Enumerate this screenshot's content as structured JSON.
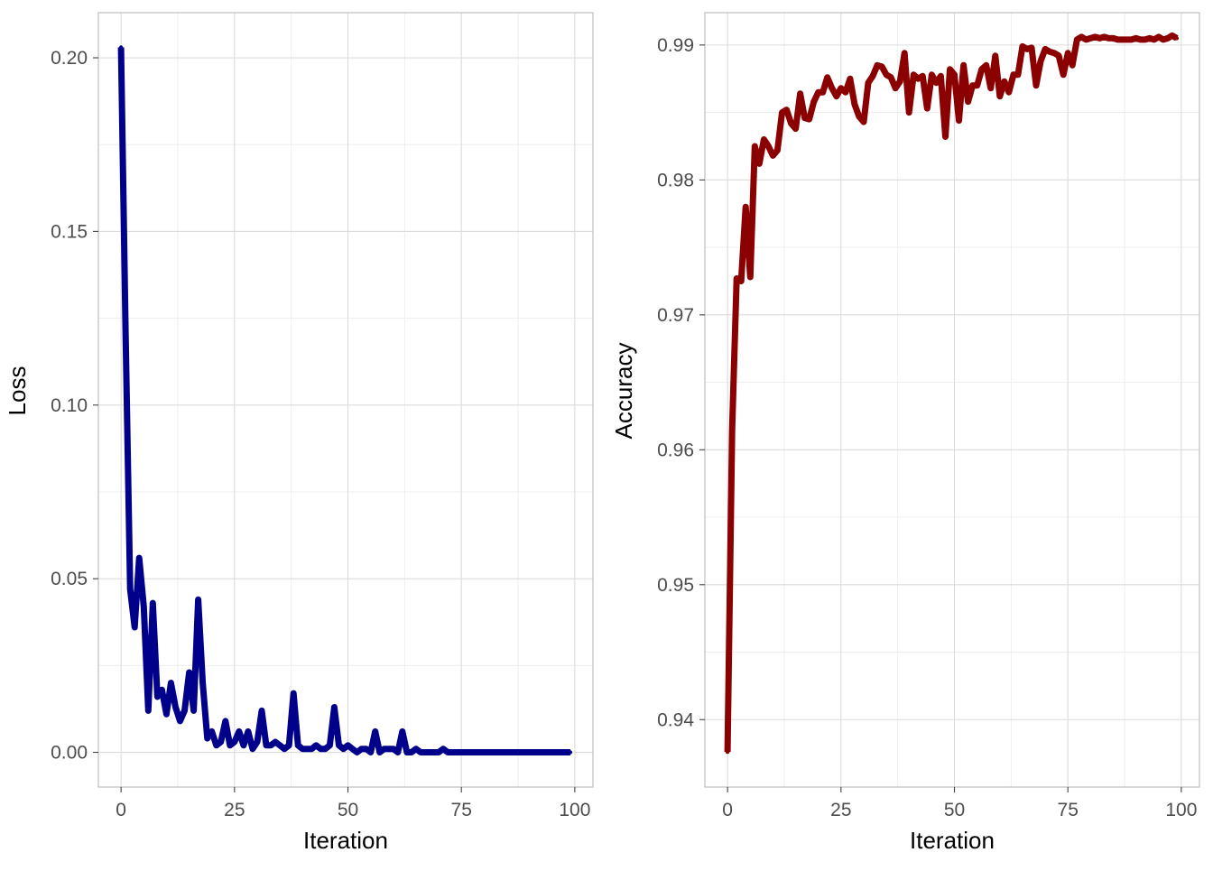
{
  "chart_data": [
    {
      "type": "line",
      "title": "",
      "xlabel": "Iteration",
      "ylabel": "Loss",
      "xlim": [
        -5,
        104
      ],
      "ylim": [
        -0.01,
        0.213
      ],
      "x_ticks": [
        0,
        25,
        50,
        75,
        100
      ],
      "x_tick_labels": [
        "0",
        "25",
        "50",
        "75",
        "100"
      ],
      "y_ticks": [
        0,
        0.05,
        0.1,
        0.15,
        0.2
      ],
      "y_tick_labels": [
        "0.00",
        "0.05",
        "0.10",
        "0.15",
        "0.20"
      ],
      "grid": true,
      "color": "#00008b",
      "series": [
        {
          "x": [
            0,
            1,
            2,
            3,
            4,
            5,
            6,
            7,
            8,
            9,
            10,
            11,
            12,
            13,
            14,
            15,
            16,
            17,
            18,
            19,
            20,
            21,
            22,
            23,
            24,
            25,
            26,
            27,
            28,
            29,
            30,
            31,
            32,
            33,
            34,
            35,
            36,
            37,
            38,
            39,
            40,
            41,
            42,
            43,
            44,
            45,
            46,
            47,
            48,
            49,
            50,
            51,
            52,
            53,
            54,
            55,
            56,
            57,
            58,
            59,
            60,
            61,
            62,
            63,
            64,
            65,
            66,
            67,
            68,
            69,
            70,
            71,
            72,
            73,
            74,
            75,
            76,
            77,
            78,
            79,
            80,
            81,
            82,
            83,
            84,
            85,
            86,
            87,
            88,
            89,
            90,
            91,
            92,
            93,
            94,
            95,
            96,
            97,
            98,
            99
          ],
          "y": [
            0.203,
            0.12,
            0.047,
            0.036,
            0.056,
            0.042,
            0.012,
            0.043,
            0.016,
            0.018,
            0.011,
            0.02,
            0.013,
            0.009,
            0.012,
            0.023,
            0.012,
            0.044,
            0.02,
            0.004,
            0.006,
            0.002,
            0.003,
            0.009,
            0.002,
            0.003,
            0.006,
            0.002,
            0.006,
            0.001,
            0.003,
            0.012,
            0.002,
            0.002,
            0.003,
            0.002,
            0.001,
            0.002,
            0.017,
            0.002,
            0.001,
            0.001,
            0.001,
            0.002,
            0.001,
            0.001,
            0.002,
            0.013,
            0.002,
            0.001,
            0.002,
            0.001,
            0.0,
            0.001,
            0.001,
            0.0,
            0.006,
            0.0,
            0.001,
            0.001,
            0.001,
            0.0,
            0.006,
            0.0,
            0.0,
            0.001,
            0.0,
            0.0,
            0.0,
            0.0,
            0.0,
            0.001,
            0.0,
            0.0,
            0.0,
            0.0,
            0.0,
            0.0,
            0.0,
            0.0,
            0.0,
            0.0,
            0.0,
            0.0,
            0.0,
            0.0,
            0.0,
            0.0,
            0.0,
            0.0,
            0.0,
            0.0,
            0.0,
            0.0,
            0.0,
            0.0,
            0.0,
            0.0,
            0.0,
            0.0
          ]
        }
      ]
    },
    {
      "type": "line",
      "title": "",
      "xlabel": "Iteration",
      "ylabel": "Accuracy",
      "xlim": [
        -5,
        104
      ],
      "ylim": [
        0.935,
        0.9924
      ],
      "x_ticks": [
        0,
        25,
        50,
        75,
        100
      ],
      "x_tick_labels": [
        "0",
        "25",
        "50",
        "75",
        "100"
      ],
      "y_ticks": [
        0.94,
        0.95,
        0.96,
        0.97,
        0.98,
        0.99
      ],
      "y_tick_labels": [
        "0.94",
        "0.95",
        "0.96",
        "0.97",
        "0.98",
        "0.99"
      ],
      "grid": true,
      "color": "#8b0000",
      "series": [
        {
          "x": [
            0,
            1,
            2,
            3,
            4,
            5,
            6,
            7,
            8,
            9,
            10,
            11,
            12,
            13,
            14,
            15,
            16,
            17,
            18,
            19,
            20,
            21,
            22,
            23,
            24,
            25,
            26,
            27,
            28,
            29,
            30,
            31,
            32,
            33,
            34,
            35,
            36,
            37,
            38,
            39,
            40,
            41,
            42,
            43,
            44,
            45,
            46,
            47,
            48,
            49,
            50,
            51,
            52,
            53,
            54,
            55,
            56,
            57,
            58,
            59,
            60,
            61,
            62,
            63,
            64,
            65,
            66,
            67,
            68,
            69,
            70,
            71,
            72,
            73,
            74,
            75,
            76,
            77,
            78,
            79,
            80,
            81,
            82,
            83,
            84,
            85,
            86,
            87,
            88,
            89,
            90,
            91,
            92,
            93,
            94,
            95,
            96,
            97,
            98,
            99
          ],
          "y": [
            0.9376,
            0.9615,
            0.9727,
            0.9725,
            0.978,
            0.9728,
            0.9825,
            0.9812,
            0.983,
            0.9825,
            0.9818,
            0.9822,
            0.985,
            0.9852,
            0.9842,
            0.9838,
            0.9864,
            0.9846,
            0.9845,
            0.9858,
            0.9865,
            0.9865,
            0.9876,
            0.9868,
            0.9862,
            0.9868,
            0.9865,
            0.9875,
            0.9856,
            0.9847,
            0.9843,
            0.9872,
            0.9877,
            0.9885,
            0.9884,
            0.9878,
            0.9876,
            0.9868,
            0.9873,
            0.9894,
            0.985,
            0.9878,
            0.9875,
            0.9877,
            0.9853,
            0.9878,
            0.9872,
            0.9877,
            0.9832,
            0.9882,
            0.9878,
            0.9844,
            0.9885,
            0.9858,
            0.987,
            0.987,
            0.9882,
            0.9885,
            0.9868,
            0.9892,
            0.9862,
            0.9873,
            0.9865,
            0.9878,
            0.9878,
            0.9899,
            0.9897,
            0.9898,
            0.987,
            0.9888,
            0.9897,
            0.9895,
            0.9894,
            0.9892,
            0.9878,
            0.9894,
            0.9885,
            0.9904,
            0.9906,
            0.9904,
            0.9905,
            0.9906,
            0.9905,
            0.9906,
            0.9905,
            0.9905,
            0.9904,
            0.9904,
            0.9904,
            0.9904,
            0.9905,
            0.9904,
            0.9904,
            0.9905,
            0.9904,
            0.9906,
            0.9904,
            0.9905,
            0.9907,
            0.9905
          ]
        }
      ]
    }
  ]
}
